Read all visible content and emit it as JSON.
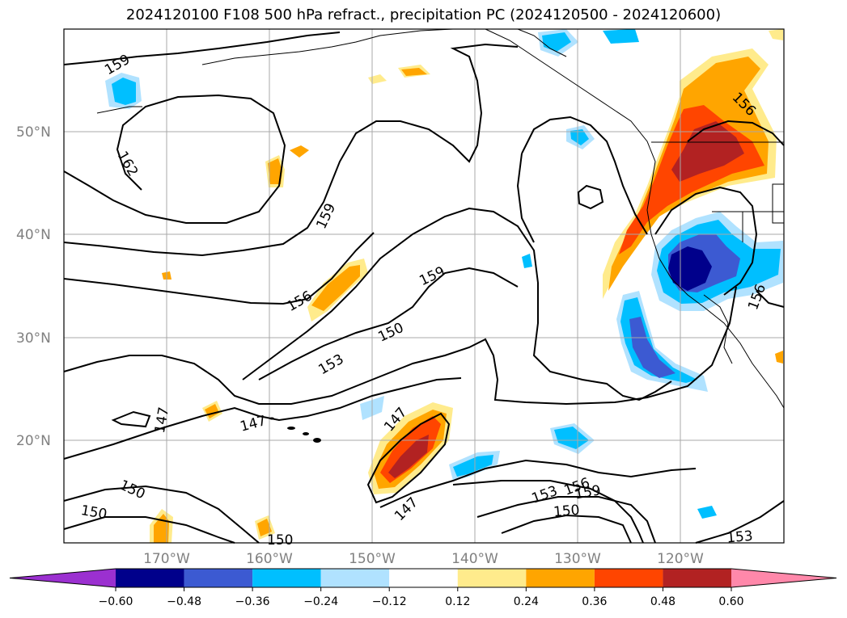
{
  "title": "2024120100 F108 500 hPa refract., precipitation PC (2024120500 - 2024120600)",
  "lat_labels": [
    "50°N",
    "40°N",
    "30°N",
    "20°N"
  ],
  "lon_labels": [
    "170°W",
    "160°W",
    "150°W",
    "140°W",
    "130°W",
    "120°W"
  ],
  "contour_labels": [
    "159",
    "162",
    "159",
    "156",
    "159",
    "150",
    "153",
    "147",
    "147",
    "147",
    "147",
    "150",
    "150",
    "153",
    "156",
    "159",
    "150",
    "153",
    "156"
  ],
  "colorbar": {
    "ticks": [
      "−0.60",
      "−0.48",
      "−0.36",
      "−0.24",
      "−0.12",
      "0.12",
      "0.24",
      "0.36",
      "0.48",
      "0.60"
    ],
    "colors": [
      "#9b30d0",
      "#00008b",
      "#3c5ad2",
      "#00bfff",
      "#b0e2ff",
      "#ffffff",
      "#ffeb8c",
      "#ffa500",
      "#ff4500",
      "#b22222",
      "#ff88aa"
    ]
  }
}
